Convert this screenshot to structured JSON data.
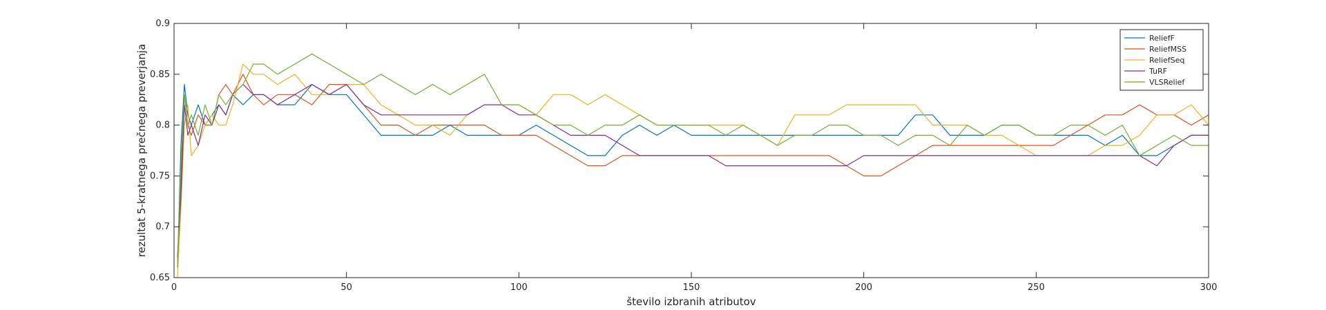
{
  "chart_data": {
    "type": "line",
    "title": "",
    "xlabel": "število izbranih atributov",
    "ylabel": "rezultat 5-kratnega prečnega preverjanja",
    "xlim": [
      0,
      300
    ],
    "ylim": [
      0.65,
      0.9
    ],
    "xticks": [
      0,
      50,
      100,
      150,
      200,
      250,
      300
    ],
    "yticks": [
      0.65,
      0.7,
      0.75,
      0.8,
      0.85,
      0.9
    ],
    "xtick_labels": [
      "0",
      "50",
      "100",
      "150",
      "200",
      "250",
      "300"
    ],
    "ytick_labels": [
      "0.65",
      "0.7",
      "0.75",
      "0.8",
      "0.85",
      "0.9"
    ],
    "grid": false,
    "legend_position": "top-right",
    "x": [
      1,
      2,
      3,
      4,
      5,
      7,
      9,
      11,
      13,
      15,
      17,
      20,
      23,
      26,
      30,
      35,
      40,
      45,
      50,
      55,
      60,
      65,
      70,
      75,
      80,
      85,
      90,
      95,
      100,
      105,
      110,
      115,
      120,
      125,
      130,
      135,
      140,
      145,
      150,
      155,
      160,
      165,
      170,
      175,
      180,
      185,
      190,
      195,
      200,
      205,
      210,
      215,
      220,
      225,
      230,
      235,
      240,
      245,
      250,
      255,
      260,
      265,
      270,
      275,
      280,
      285,
      290,
      295,
      300
    ],
    "series": [
      {
        "name": "ReliefF",
        "color": "#0072BD",
        "values": [
          0.66,
          0.78,
          0.84,
          0.81,
          0.8,
          0.82,
          0.8,
          0.81,
          0.82,
          0.81,
          0.83,
          0.82,
          0.83,
          0.83,
          0.82,
          0.82,
          0.84,
          0.83,
          0.83,
          0.81,
          0.79,
          0.79,
          0.79,
          0.79,
          0.8,
          0.79,
          0.79,
          0.79,
          0.79,
          0.8,
          0.79,
          0.78,
          0.77,
          0.77,
          0.79,
          0.8,
          0.79,
          0.8,
          0.79,
          0.79,
          0.79,
          0.79,
          0.79,
          0.79,
          0.79,
          0.79,
          0.79,
          0.79,
          0.79,
          0.79,
          0.79,
          0.81,
          0.81,
          0.79,
          0.79,
          0.79,
          0.8,
          0.8,
          0.79,
          0.79,
          0.79,
          0.79,
          0.78,
          0.79,
          0.77,
          0.77,
          0.78,
          0.79,
          0.79
        ]
      },
      {
        "name": "ReliefMSS",
        "color": "#D95319",
        "values": [
          0.67,
          0.74,
          0.83,
          0.8,
          0.79,
          0.81,
          0.8,
          0.8,
          0.83,
          0.84,
          0.83,
          0.85,
          0.83,
          0.82,
          0.83,
          0.83,
          0.82,
          0.84,
          0.84,
          0.82,
          0.8,
          0.8,
          0.79,
          0.8,
          0.8,
          0.8,
          0.8,
          0.79,
          0.79,
          0.79,
          0.78,
          0.77,
          0.76,
          0.76,
          0.77,
          0.77,
          0.77,
          0.77,
          0.77,
          0.77,
          0.77,
          0.77,
          0.77,
          0.77,
          0.77,
          0.77,
          0.77,
          0.76,
          0.75,
          0.75,
          0.76,
          0.77,
          0.78,
          0.78,
          0.78,
          0.78,
          0.78,
          0.78,
          0.78,
          0.78,
          0.79,
          0.8,
          0.81,
          0.81,
          0.82,
          0.81,
          0.81,
          0.8,
          0.81
        ]
      },
      {
        "name": "ReliefSeq",
        "color": "#EDB120",
        "values": [
          0.65,
          0.72,
          0.8,
          0.82,
          0.77,
          0.78,
          0.8,
          0.81,
          0.8,
          0.8,
          0.82,
          0.86,
          0.85,
          0.85,
          0.84,
          0.85,
          0.83,
          0.83,
          0.84,
          0.84,
          0.82,
          0.81,
          0.8,
          0.8,
          0.79,
          0.81,
          0.82,
          0.82,
          0.82,
          0.81,
          0.83,
          0.83,
          0.82,
          0.83,
          0.82,
          0.81,
          0.8,
          0.8,
          0.8,
          0.8,
          0.8,
          0.8,
          0.79,
          0.78,
          0.81,
          0.81,
          0.81,
          0.82,
          0.82,
          0.82,
          0.82,
          0.82,
          0.8,
          0.8,
          0.8,
          0.79,
          0.79,
          0.78,
          0.77,
          0.77,
          0.77,
          0.77,
          0.78,
          0.78,
          0.79,
          0.81,
          0.81,
          0.82,
          0.8
        ]
      },
      {
        "name": "TuRF",
        "color": "#7E2F8E",
        "values": [
          0.67,
          0.73,
          0.82,
          0.79,
          0.8,
          0.78,
          0.81,
          0.8,
          0.82,
          0.81,
          0.83,
          0.84,
          0.83,
          0.83,
          0.82,
          0.83,
          0.84,
          0.83,
          0.84,
          0.82,
          0.81,
          0.81,
          0.81,
          0.81,
          0.81,
          0.81,
          0.82,
          0.82,
          0.81,
          0.81,
          0.8,
          0.79,
          0.79,
          0.79,
          0.78,
          0.77,
          0.77,
          0.77,
          0.77,
          0.77,
          0.76,
          0.76,
          0.76,
          0.76,
          0.76,
          0.76,
          0.76,
          0.76,
          0.77,
          0.77,
          0.77,
          0.77,
          0.77,
          0.77,
          0.77,
          0.77,
          0.77,
          0.77,
          0.77,
          0.77,
          0.77,
          0.77,
          0.77,
          0.77,
          0.77,
          0.76,
          0.78,
          0.79,
          0.79
        ]
      },
      {
        "name": "VLSRelief",
        "color": "#77AC30",
        "values": [
          0.66,
          0.76,
          0.83,
          0.8,
          0.81,
          0.79,
          0.82,
          0.8,
          0.83,
          0.82,
          0.83,
          0.84,
          0.86,
          0.86,
          0.85,
          0.86,
          0.87,
          0.86,
          0.85,
          0.84,
          0.85,
          0.84,
          0.83,
          0.84,
          0.83,
          0.84,
          0.85,
          0.82,
          0.82,
          0.81,
          0.8,
          0.8,
          0.79,
          0.8,
          0.8,
          0.81,
          0.8,
          0.8,
          0.8,
          0.8,
          0.79,
          0.8,
          0.79,
          0.78,
          0.79,
          0.79,
          0.8,
          0.8,
          0.79,
          0.79,
          0.78,
          0.79,
          0.79,
          0.78,
          0.8,
          0.79,
          0.8,
          0.8,
          0.79,
          0.79,
          0.8,
          0.8,
          0.79,
          0.8,
          0.77,
          0.78,
          0.79,
          0.78,
          0.78
        ]
      }
    ]
  }
}
